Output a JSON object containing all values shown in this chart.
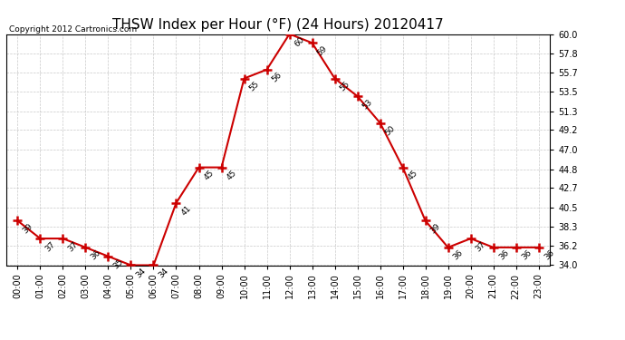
{
  "title": "THSW Index per Hour (°F) (24 Hours) 20120417",
  "copyright": "Copyright 2012 Cartronics.com",
  "hours": [
    "00:00",
    "01:00",
    "02:00",
    "03:00",
    "04:00",
    "05:00",
    "06:00",
    "07:00",
    "08:00",
    "09:00",
    "10:00",
    "11:00",
    "12:00",
    "13:00",
    "14:00",
    "15:00",
    "16:00",
    "17:00",
    "18:00",
    "19:00",
    "20:00",
    "21:00",
    "22:00",
    "23:00"
  ],
  "values": [
    39,
    37,
    37,
    36,
    35,
    34,
    34,
    41,
    45,
    45,
    55,
    56,
    60,
    59,
    55,
    53,
    50,
    45,
    39,
    36,
    37,
    36,
    36,
    36
  ],
  "ylim": [
    34.0,
    60.0
  ],
  "yticks": [
    34.0,
    36.2,
    38.3,
    40.5,
    42.7,
    44.8,
    47.0,
    49.2,
    51.3,
    53.5,
    55.7,
    57.8,
    60.0
  ],
  "ytick_labels": [
    "34.0",
    "36.2",
    "38.3",
    "40.5",
    "42.7",
    "44.8",
    "47.0",
    "49.2",
    "51.3",
    "53.5",
    "55.7",
    "57.8",
    "60.0"
  ],
  "line_color": "#cc0000",
  "bg_color": "#ffffff",
  "grid_color": "#bbbbbb",
  "title_fontsize": 11,
  "annotation_fontsize": 6.5,
  "tick_fontsize": 7,
  "copyright_fontsize": 6.5
}
